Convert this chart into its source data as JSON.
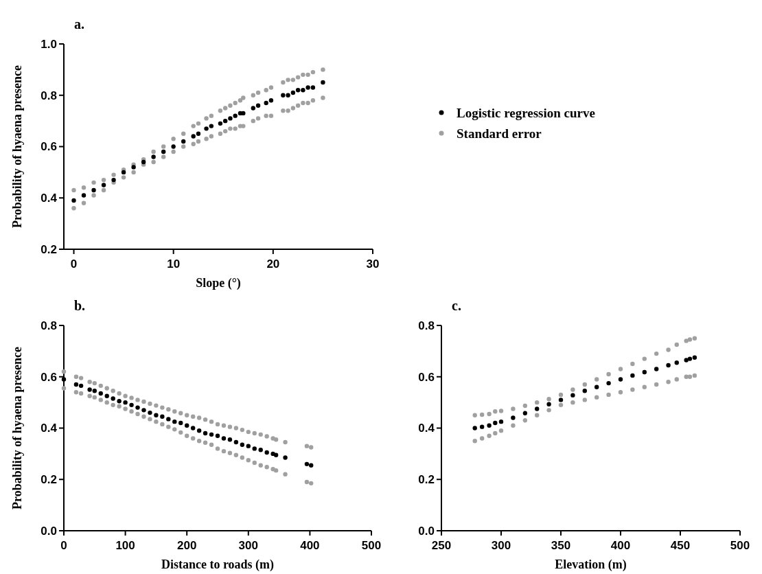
{
  "chart_data": [
    {
      "type": "scatter",
      "title": "a.",
      "xlabel": "Slope (°)",
      "ylabel": "Probability of hyaena presence",
      "xlim": [
        -1,
        30
      ],
      "xticks": [
        0,
        10,
        20,
        30
      ],
      "ylim": [
        0.2,
        1.0
      ],
      "yticks": [
        {
          "value": 0.2,
          "label": "0.2"
        },
        {
          "value": 0.4,
          "label": "0.4"
        },
        {
          "value": 0.6,
          "label": "0.6"
        },
        {
          "value": 0.8,
          "label": "0.8"
        },
        {
          "value": 1.0,
          "label": "1.0"
        }
      ],
      "grid": false,
      "legend": "right",
      "marker": "circle",
      "series": [
        {
          "name": "Logistic regression curve",
          "color": "#000000",
          "x": [
            0,
            1,
            2,
            3,
            4,
            5,
            6,
            7,
            8,
            9,
            10,
            11,
            12,
            12.5,
            13.3,
            13.8,
            14.7,
            15.2,
            15.7,
            16.2,
            16.7,
            17,
            18,
            18.5,
            19.3,
            19.8,
            21,
            21.5,
            22,
            22.5,
            23,
            23.5,
            24,
            25
          ],
          "values": [
            0.39,
            0.41,
            0.43,
            0.45,
            0.47,
            0.5,
            0.52,
            0.54,
            0.56,
            0.58,
            0.6,
            0.62,
            0.64,
            0.65,
            0.67,
            0.68,
            0.69,
            0.7,
            0.71,
            0.72,
            0.73,
            0.73,
            0.75,
            0.76,
            0.77,
            0.78,
            0.8,
            0.8,
            0.81,
            0.82,
            0.82,
            0.83,
            0.83,
            0.85
          ]
        },
        {
          "name": "Standard error",
          "color": "#a0a0a0",
          "x": [
            0,
            1,
            2,
            3,
            4,
            5,
            6,
            7,
            8,
            9,
            10,
            11,
            12,
            12.5,
            13.3,
            13.8,
            14.7,
            15.2,
            15.7,
            16.2,
            16.7,
            17,
            18,
            18.5,
            19.3,
            19.8,
            21,
            21.5,
            22,
            22.5,
            23,
            23.5,
            24,
            25
          ],
          "values": [
            0.43,
            0.44,
            0.46,
            0.47,
            0.49,
            0.51,
            0.53,
            0.55,
            0.58,
            0.6,
            0.63,
            0.65,
            0.68,
            0.69,
            0.71,
            0.72,
            0.74,
            0.75,
            0.76,
            0.77,
            0.78,
            0.79,
            0.8,
            0.81,
            0.82,
            0.83,
            0.85,
            0.86,
            0.86,
            0.87,
            0.88,
            0.88,
            0.89,
            0.9
          ]
        },
        {
          "color": "#a0a0a0",
          "x": [
            0,
            1,
            2,
            3,
            4,
            5,
            6,
            7,
            8,
            9,
            10,
            11,
            12,
            12.5,
            13.3,
            13.8,
            14.7,
            15.2,
            15.7,
            16.2,
            16.7,
            17,
            18,
            18.5,
            19.3,
            19.8,
            21,
            21.5,
            22,
            22.5,
            23,
            23.5,
            24,
            25
          ],
          "values": [
            0.36,
            0.38,
            0.41,
            0.43,
            0.46,
            0.48,
            0.5,
            0.53,
            0.54,
            0.56,
            0.58,
            0.6,
            0.61,
            0.62,
            0.63,
            0.64,
            0.65,
            0.66,
            0.67,
            0.67,
            0.68,
            0.68,
            0.7,
            0.71,
            0.72,
            0.72,
            0.74,
            0.74,
            0.75,
            0.76,
            0.77,
            0.77,
            0.78,
            0.79
          ]
        }
      ]
    },
    {
      "type": "scatter",
      "title": "b.",
      "xlabel": "Distance to roads (m)",
      "ylabel": "Probability of hyaena presence",
      "xlim": [
        0,
        500
      ],
      "xticks": [
        0,
        100,
        200,
        300,
        400,
        500
      ],
      "ylim": [
        0,
        0.8
      ],
      "yticks": [
        {
          "value": 0,
          "label": "0.0"
        },
        {
          "value": 0.2,
          "label": "0.2"
        },
        {
          "value": 0.4,
          "label": "0.4"
        },
        {
          "value": 0.6,
          "label": "0.6"
        },
        {
          "value": 0.8,
          "label": "0.8"
        }
      ],
      "grid": false,
      "marker": "circle",
      "series": [
        {
          "color": "#000000",
          "x": [
            0,
            20,
            28,
            42,
            50,
            60,
            70,
            80,
            90,
            100,
            110,
            120,
            130,
            140,
            150,
            160,
            170,
            180,
            190,
            200,
            210,
            220,
            230,
            240,
            250,
            260,
            270,
            280,
            290,
            300,
            310,
            320,
            330,
            340,
            345,
            360,
            395,
            402
          ],
          "values": [
            0.59,
            0.57,
            0.565,
            0.55,
            0.545,
            0.535,
            0.525,
            0.515,
            0.505,
            0.5,
            0.49,
            0.48,
            0.47,
            0.46,
            0.45,
            0.445,
            0.435,
            0.425,
            0.42,
            0.41,
            0.4,
            0.39,
            0.38,
            0.375,
            0.37,
            0.36,
            0.355,
            0.345,
            0.335,
            0.33,
            0.32,
            0.315,
            0.305,
            0.3,
            0.295,
            0.285,
            0.26,
            0.255
          ]
        },
        {
          "color": "#a0a0a0",
          "x": [
            0,
            20,
            28,
            42,
            50,
            60,
            70,
            80,
            90,
            100,
            110,
            120,
            130,
            140,
            150,
            160,
            170,
            180,
            190,
            200,
            210,
            220,
            230,
            240,
            250,
            260,
            270,
            280,
            290,
            300,
            310,
            320,
            330,
            340,
            345,
            360,
            395,
            402
          ],
          "values": [
            0.62,
            0.6,
            0.595,
            0.58,
            0.575,
            0.565,
            0.555,
            0.545,
            0.535,
            0.525,
            0.518,
            0.51,
            0.503,
            0.495,
            0.488,
            0.48,
            0.473,
            0.465,
            0.458,
            0.45,
            0.445,
            0.44,
            0.433,
            0.425,
            0.415,
            0.41,
            0.405,
            0.4,
            0.393,
            0.385,
            0.38,
            0.375,
            0.368,
            0.36,
            0.355,
            0.345,
            0.33,
            0.325
          ]
        },
        {
          "color": "#a0a0a0",
          "x": [
            0,
            20,
            28,
            42,
            50,
            60,
            70,
            80,
            90,
            100,
            110,
            120,
            130,
            140,
            150,
            160,
            170,
            180,
            190,
            200,
            210,
            220,
            230,
            240,
            250,
            260,
            270,
            280,
            290,
            300,
            310,
            320,
            330,
            340,
            345,
            360,
            395,
            402
          ],
          "values": [
            0.555,
            0.54,
            0.535,
            0.525,
            0.52,
            0.51,
            0.5,
            0.49,
            0.485,
            0.475,
            0.465,
            0.455,
            0.445,
            0.435,
            0.425,
            0.415,
            0.405,
            0.395,
            0.383,
            0.37,
            0.36,
            0.35,
            0.343,
            0.335,
            0.32,
            0.31,
            0.303,
            0.295,
            0.285,
            0.275,
            0.265,
            0.255,
            0.248,
            0.24,
            0.235,
            0.22,
            0.19,
            0.185
          ]
        }
      ]
    },
    {
      "type": "scatter",
      "title": "c.",
      "xlabel": "Elevation (m)",
      "xlim": [
        250,
        500
      ],
      "xticks": [
        250,
        300,
        350,
        400,
        450,
        500
      ],
      "ylim": [
        0,
        0.8
      ],
      "yticks": [
        {
          "value": 0,
          "label": "0.0"
        },
        {
          "value": 0.2,
          "label": "0.2"
        },
        {
          "value": 0.4,
          "label": "0.4"
        },
        {
          "value": 0.6,
          "label": "0.6"
        },
        {
          "value": 0.8,
          "label": "0.8"
        }
      ],
      "grid": false,
      "marker": "circle",
      "series": [
        {
          "color": "#000000",
          "x": [
            278,
            284,
            290,
            295,
            300,
            310,
            320,
            330,
            340,
            350,
            360,
            370,
            380,
            390,
            400,
            410,
            420,
            430,
            440,
            447,
            455,
            458,
            462
          ],
          "values": [
            0.4,
            0.405,
            0.41,
            0.42,
            0.425,
            0.44,
            0.458,
            0.475,
            0.493,
            0.51,
            0.528,
            0.545,
            0.56,
            0.575,
            0.59,
            0.605,
            0.618,
            0.63,
            0.645,
            0.655,
            0.665,
            0.67,
            0.675
          ]
        },
        {
          "color": "#a0a0a0",
          "x": [
            278,
            284,
            290,
            295,
            300,
            310,
            320,
            330,
            340,
            350,
            360,
            370,
            380,
            390,
            400,
            410,
            420,
            430,
            440,
            447,
            455,
            458,
            462
          ],
          "values": [
            0.45,
            0.452,
            0.455,
            0.465,
            0.467,
            0.475,
            0.487,
            0.5,
            0.513,
            0.53,
            0.55,
            0.57,
            0.59,
            0.61,
            0.63,
            0.65,
            0.67,
            0.69,
            0.705,
            0.725,
            0.74,
            0.745,
            0.75
          ]
        },
        {
          "color": "#a0a0a0",
          "x": [
            278,
            284,
            290,
            295,
            300,
            310,
            320,
            330,
            340,
            350,
            360,
            370,
            380,
            390,
            400,
            410,
            420,
            430,
            440,
            447,
            455,
            458,
            462
          ],
          "values": [
            0.35,
            0.36,
            0.37,
            0.38,
            0.39,
            0.41,
            0.43,
            0.45,
            0.47,
            0.49,
            0.5,
            0.51,
            0.52,
            0.53,
            0.54,
            0.55,
            0.56,
            0.57,
            0.58,
            0.59,
            0.6,
            0.6,
            0.605
          ]
        }
      ]
    }
  ]
}
